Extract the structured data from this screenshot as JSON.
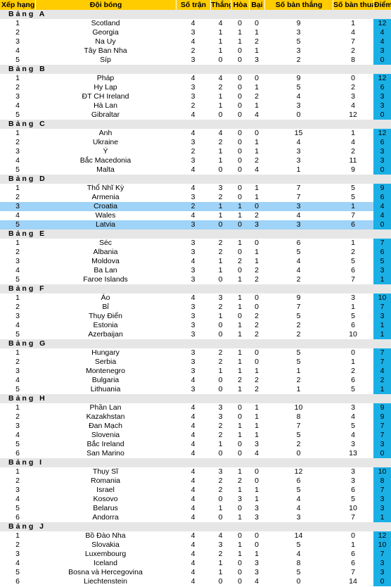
{
  "header": {
    "rank": "Xếp hạng",
    "team": "Đội bóng",
    "played": "Số trận",
    "won": "Thắng",
    "drawn": "Hòa",
    "lost": "Bại",
    "gf": "Số bàn thắng",
    "ga": "Số bàn thua",
    "pts": "Điểm"
  },
  "groups": [
    {
      "name": "Bảng A",
      "rows": [
        {
          "rank": "1",
          "team": "Scotland",
          "p": "4",
          "w": "4",
          "d": "0",
          "l": "0",
          "gf": "9",
          "ga": "1",
          "pts": "12"
        },
        {
          "rank": "2",
          "team": "Georgia",
          "p": "3",
          "w": "1",
          "d": "1",
          "l": "1",
          "gf": "3",
          "ga": "4",
          "pts": "4"
        },
        {
          "rank": "3",
          "team": "Na Uy",
          "p": "4",
          "w": "1",
          "d": "1",
          "l": "2",
          "gf": "5",
          "ga": "7",
          "pts": "4"
        },
        {
          "rank": "4",
          "team": "Tây Ban Nha",
          "p": "2",
          "w": "1",
          "d": "0",
          "l": "1",
          "gf": "3",
          "ga": "2",
          "pts": "3"
        },
        {
          "rank": "5",
          "team": "Síp",
          "p": "3",
          "w": "0",
          "d": "0",
          "l": "3",
          "gf": "2",
          "ga": "8",
          "pts": "0"
        }
      ]
    },
    {
      "name": "Bảng B",
      "rows": [
        {
          "rank": "1",
          "team": "Pháp",
          "p": "4",
          "w": "4",
          "d": "0",
          "l": "0",
          "gf": "9",
          "ga": "0",
          "pts": "12"
        },
        {
          "rank": "2",
          "team": "Hy Lạp",
          "p": "3",
          "w": "2",
          "d": "0",
          "l": "1",
          "gf": "5",
          "ga": "2",
          "pts": "6"
        },
        {
          "rank": "3",
          "team": "ĐT CH Ireland",
          "p": "3",
          "w": "1",
          "d": "0",
          "l": "2",
          "gf": "4",
          "ga": "3",
          "pts": "3"
        },
        {
          "rank": "4",
          "team": "Hà Lan",
          "p": "2",
          "w": "1",
          "d": "0",
          "l": "1",
          "gf": "3",
          "ga": "4",
          "pts": "3"
        },
        {
          "rank": "5",
          "team": "Gibraltar",
          "p": "4",
          "w": "0",
          "d": "0",
          "l": "4",
          "gf": "0",
          "ga": "12",
          "pts": "0"
        }
      ]
    },
    {
      "name": "Bảng C",
      "rows": [
        {
          "rank": "1",
          "team": "Anh",
          "p": "4",
          "w": "4",
          "d": "0",
          "l": "0",
          "gf": "15",
          "ga": "1",
          "pts": "12"
        },
        {
          "rank": "2",
          "team": "Ukraine",
          "p": "3",
          "w": "2",
          "d": "0",
          "l": "1",
          "gf": "4",
          "ga": "4",
          "pts": "6"
        },
        {
          "rank": "3",
          "team": "Ý",
          "p": "2",
          "w": "1",
          "d": "0",
          "l": "1",
          "gf": "3",
          "ga": "2",
          "pts": "3"
        },
        {
          "rank": "4",
          "team": "Bắc Macedonia",
          "p": "3",
          "w": "1",
          "d": "0",
          "l": "2",
          "gf": "3",
          "ga": "11",
          "pts": "3"
        },
        {
          "rank": "5",
          "team": "Malta",
          "p": "4",
          "w": "0",
          "d": "0",
          "l": "4",
          "gf": "1",
          "ga": "9",
          "pts": "0"
        }
      ]
    },
    {
      "name": "Bảng D",
      "rows": [
        {
          "rank": "1",
          "team": "Thổ Nhĩ Kỳ",
          "p": "4",
          "w": "3",
          "d": "0",
          "l": "1",
          "gf": "7",
          "ga": "5",
          "pts": "9"
        },
        {
          "rank": "2",
          "team": "Armenia",
          "p": "3",
          "w": "2",
          "d": "0",
          "l": "1",
          "gf": "7",
          "ga": "5",
          "pts": "6"
        },
        {
          "rank": "3",
          "team": "Croatia",
          "p": "2",
          "w": "1",
          "d": "1",
          "l": "0",
          "gf": "3",
          "ga": "1",
          "pts": "4",
          "highlight": true
        },
        {
          "rank": "4",
          "team": "Wales",
          "p": "4",
          "w": "1",
          "d": "1",
          "l": "2",
          "gf": "4",
          "ga": "7",
          "pts": "4"
        },
        {
          "rank": "5",
          "team": "Latvia",
          "p": "3",
          "w": "0",
          "d": "0",
          "l": "3",
          "gf": "3",
          "ga": "6",
          "pts": "0",
          "highlight": true
        }
      ]
    },
    {
      "name": "Bảng E",
      "rows": [
        {
          "rank": "1",
          "team": "Séc",
          "p": "3",
          "w": "2",
          "d": "1",
          "l": "0",
          "gf": "6",
          "ga": "1",
          "pts": "7"
        },
        {
          "rank": "2",
          "team": "Albania",
          "p": "3",
          "w": "2",
          "d": "0",
          "l": "1",
          "gf": "5",
          "ga": "2",
          "pts": "6"
        },
        {
          "rank": "3",
          "team": "Moldova",
          "p": "4",
          "w": "1",
          "d": "2",
          "l": "1",
          "gf": "4",
          "ga": "5",
          "pts": "5"
        },
        {
          "rank": "4",
          "team": "Ba Lan",
          "p": "3",
          "w": "1",
          "d": "0",
          "l": "2",
          "gf": "4",
          "ga": "6",
          "pts": "3"
        },
        {
          "rank": "5",
          "team": "Faroe Islands",
          "p": "3",
          "w": "0",
          "d": "1",
          "l": "2",
          "gf": "2",
          "ga": "7",
          "pts": "1"
        }
      ]
    },
    {
      "name": "Bảng F",
      "rows": [
        {
          "rank": "1",
          "team": "Áo",
          "p": "4",
          "w": "3",
          "d": "1",
          "l": "0",
          "gf": "9",
          "ga": "3",
          "pts": "10"
        },
        {
          "rank": "2",
          "team": "Bỉ",
          "p": "3",
          "w": "2",
          "d": "1",
          "l": "0",
          "gf": "7",
          "ga": "1",
          "pts": "7"
        },
        {
          "rank": "3",
          "team": "Thụy Điển",
          "p": "3",
          "w": "1",
          "d": "0",
          "l": "2",
          "gf": "5",
          "ga": "5",
          "pts": "3"
        },
        {
          "rank": "4",
          "team": "Estonia",
          "p": "3",
          "w": "0",
          "d": "1",
          "l": "2",
          "gf": "2",
          "ga": "6",
          "pts": "1"
        },
        {
          "rank": "5",
          "team": "Azerbaijan",
          "p": "3",
          "w": "0",
          "d": "1",
          "l": "2",
          "gf": "2",
          "ga": "10",
          "pts": "1"
        }
      ]
    },
    {
      "name": "Bảng G",
      "rows": [
        {
          "rank": "1",
          "team": "Hungary",
          "p": "3",
          "w": "2",
          "d": "1",
          "l": "0",
          "gf": "5",
          "ga": "0",
          "pts": "7"
        },
        {
          "rank": "2",
          "team": "Serbia",
          "p": "3",
          "w": "2",
          "d": "1",
          "l": "0",
          "gf": "5",
          "ga": "1",
          "pts": "7"
        },
        {
          "rank": "3",
          "team": "Montenegro",
          "p": "3",
          "w": "1",
          "d": "1",
          "l": "1",
          "gf": "1",
          "ga": "2",
          "pts": "4"
        },
        {
          "rank": "4",
          "team": "Bulgaria",
          "p": "4",
          "w": "0",
          "d": "2",
          "l": "2",
          "gf": "2",
          "ga": "6",
          "pts": "2"
        },
        {
          "rank": "5",
          "team": "Lithuania",
          "p": "3",
          "w": "0",
          "d": "1",
          "l": "2",
          "gf": "1",
          "ga": "5",
          "pts": "1"
        }
      ]
    },
    {
      "name": "Bảng H",
      "rows": [
        {
          "rank": "1",
          "team": "Phần Lan",
          "p": "4",
          "w": "3",
          "d": "0",
          "l": "1",
          "gf": "10",
          "ga": "3",
          "pts": "9"
        },
        {
          "rank": "2",
          "team": "Kazakhstan",
          "p": "4",
          "w": "3",
          "d": "0",
          "l": "1",
          "gf": "8",
          "ga": "4",
          "pts": "9"
        },
        {
          "rank": "3",
          "team": "Đan Mạch",
          "p": "4",
          "w": "2",
          "d": "1",
          "l": "1",
          "gf": "7",
          "ga": "5",
          "pts": "7"
        },
        {
          "rank": "4",
          "team": "Slovenia",
          "p": "4",
          "w": "2",
          "d": "1",
          "l": "1",
          "gf": "5",
          "ga": "4",
          "pts": "7"
        },
        {
          "rank": "5",
          "team": "Bắc Ireland",
          "p": "4",
          "w": "1",
          "d": "0",
          "l": "3",
          "gf": "2",
          "ga": "3",
          "pts": "3"
        },
        {
          "rank": "6",
          "team": "San Marino",
          "p": "4",
          "w": "0",
          "d": "0",
          "l": "4",
          "gf": "0",
          "ga": "13",
          "pts": "0"
        }
      ]
    },
    {
      "name": "Bảng I",
      "rows": [
        {
          "rank": "1",
          "team": "Thụy Sĩ",
          "p": "4",
          "w": "3",
          "d": "1",
          "l": "0",
          "gf": "12",
          "ga": "3",
          "pts": "10"
        },
        {
          "rank": "2",
          "team": "Romania",
          "p": "4",
          "w": "2",
          "d": "2",
          "l": "0",
          "gf": "6",
          "ga": "3",
          "pts": "8"
        },
        {
          "rank": "3",
          "team": "Israel",
          "p": "4",
          "w": "2",
          "d": "1",
          "l": "1",
          "gf": "5",
          "ga": "6",
          "pts": "7"
        },
        {
          "rank": "4",
          "team": "Kosovo",
          "p": "4",
          "w": "0",
          "d": "3",
          "l": "1",
          "gf": "4",
          "ga": "5",
          "pts": "3"
        },
        {
          "rank": "5",
          "team": "Belarus",
          "p": "4",
          "w": "1",
          "d": "0",
          "l": "3",
          "gf": "4",
          "ga": "10",
          "pts": "3"
        },
        {
          "rank": "6",
          "team": "Andorra",
          "p": "4",
          "w": "0",
          "d": "1",
          "l": "3",
          "gf": "3",
          "ga": "7",
          "pts": "1"
        }
      ]
    },
    {
      "name": "Bảng J",
      "rows": [
        {
          "rank": "1",
          "team": "Bồ Đào Nha",
          "p": "4",
          "w": "4",
          "d": "0",
          "l": "0",
          "gf": "14",
          "ga": "0",
          "pts": "12"
        },
        {
          "rank": "2",
          "team": "Slovakia",
          "p": "4",
          "w": "3",
          "d": "1",
          "l": "0",
          "gf": "5",
          "ga": "1",
          "pts": "10"
        },
        {
          "rank": "3",
          "team": "Luxembourg",
          "p": "4",
          "w": "2",
          "d": "1",
          "l": "1",
          "gf": "4",
          "ga": "6",
          "pts": "7"
        },
        {
          "rank": "4",
          "team": "Iceland",
          "p": "4",
          "w": "1",
          "d": "0",
          "l": "3",
          "gf": "8",
          "ga": "6",
          "pts": "3"
        },
        {
          "rank": "5",
          "team": "Bosna và Hercegovina",
          "p": "4",
          "w": "1",
          "d": "0",
          "l": "3",
          "gf": "5",
          "ga": "7",
          "pts": "3"
        },
        {
          "rank": "6",
          "team": "Liechtenstein",
          "p": "4",
          "w": "0",
          "d": "0",
          "l": "4",
          "gf": "0",
          "ga": "14",
          "pts": "0"
        }
      ]
    }
  ]
}
